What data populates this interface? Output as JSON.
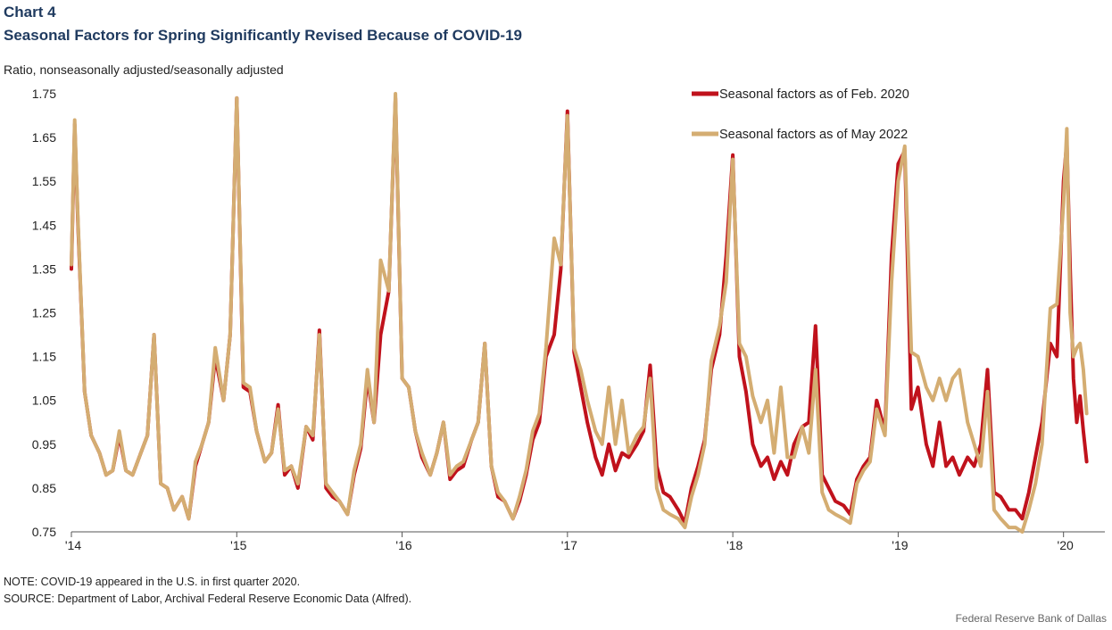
{
  "header": {
    "chart_number": "Chart 4",
    "title": "Seasonal Factors for Spring Significantly Revised Because of COVID-19"
  },
  "footer": {
    "note": "NOTE: COVID-19 appeared in the U.S. in first quarter 2020.",
    "source": "SOURCE: Department of Labor, Archival Federal Reserve Economic Data (Alfred).",
    "credit": "Federal  Reserve  Bank of Dallas"
  },
  "chart_data": {
    "type": "line",
    "title": "Seasonal Factors for Spring Significantly Revised Because of COVID-19",
    "xlabel": "",
    "ylabel": "Ratio, nonseasonally  adjusted/seasonally  adjusted",
    "ylim": [
      0.75,
      1.75
    ],
    "xlim": [
      2014.0,
      2020.25
    ],
    "yticks": [
      "1.75",
      "1.65",
      "1.55",
      "1.45",
      "1.35",
      "1.25",
      "1.15",
      "1.05",
      "0.95",
      "0.85",
      "0.75"
    ],
    "xticks": [
      {
        "value": 2014,
        "label": "'14"
      },
      {
        "value": 2015,
        "label": "'15"
      },
      {
        "value": 2016,
        "label": "'16"
      },
      {
        "value": 2017,
        "label": "'17"
      },
      {
        "value": 2018,
        "label": "'18"
      },
      {
        "value": 2019,
        "label": "'19"
      },
      {
        "value": 2020,
        "label": "'20"
      }
    ],
    "grid": false,
    "legend_position": "top-right",
    "series": [
      {
        "name": "Seasonal factors as of Feb. 2020",
        "color": "#c0121c",
        "x": [
          2014.0,
          2014.02,
          2014.04,
          2014.08,
          2014.12,
          2014.17,
          2014.21,
          2014.25,
          2014.29,
          2014.33,
          2014.37,
          2014.42,
          2014.46,
          2014.5,
          2014.54,
          2014.58,
          2014.62,
          2014.67,
          2014.71,
          2014.75,
          2014.79,
          2014.83,
          2014.87,
          2014.92,
          2014.96,
          2015.0,
          2015.04,
          2015.08,
          2015.12,
          2015.17,
          2015.21,
          2015.25,
          2015.29,
          2015.33,
          2015.37,
          2015.42,
          2015.46,
          2015.5,
          2015.54,
          2015.58,
          2015.62,
          2015.67,
          2015.71,
          2015.75,
          2015.79,
          2015.83,
          2015.87,
          2015.92,
          2015.96,
          2016.0,
          2016.04,
          2016.08,
          2016.12,
          2016.17,
          2016.21,
          2016.25,
          2016.29,
          2016.33,
          2016.37,
          2016.42,
          2016.46,
          2016.5,
          2016.54,
          2016.58,
          2016.62,
          2016.67,
          2016.71,
          2016.75,
          2016.79,
          2016.83,
          2016.87,
          2016.92,
          2016.96,
          2017.0,
          2017.04,
          2017.08,
          2017.12,
          2017.17,
          2017.21,
          2017.25,
          2017.29,
          2017.33,
          2017.37,
          2017.42,
          2017.46,
          2017.5,
          2017.54,
          2017.58,
          2017.62,
          2017.67,
          2017.71,
          2017.75,
          2017.79,
          2017.83,
          2017.87,
          2017.92,
          2017.96,
          2018.0,
          2018.04,
          2018.08,
          2018.12,
          2018.17,
          2018.21,
          2018.25,
          2018.29,
          2018.33,
          2018.37,
          2018.42,
          2018.46,
          2018.5,
          2018.54,
          2018.58,
          2018.62,
          2018.67,
          2018.71,
          2018.75,
          2018.79,
          2018.83,
          2018.87,
          2018.92,
          2018.96,
          2019.0,
          2019.04,
          2019.08,
          2019.12,
          2019.17,
          2019.21,
          2019.25,
          2019.29,
          2019.33,
          2019.37,
          2019.42,
          2019.46,
          2019.5,
          2019.54,
          2019.58,
          2019.62,
          2019.67,
          2019.71,
          2019.75,
          2019.79,
          2019.83,
          2019.87,
          2019.92,
          2019.96,
          2020.0,
          2020.02,
          2020.04,
          2020.06,
          2020.08,
          2020.1,
          2020.12,
          2020.14
        ],
        "values": [
          1.35,
          1.68,
          1.45,
          1.07,
          0.97,
          0.93,
          0.88,
          0.89,
          0.97,
          0.89,
          0.88,
          0.93,
          0.97,
          1.2,
          0.86,
          0.85,
          0.8,
          0.83,
          0.78,
          0.9,
          0.95,
          1.0,
          1.15,
          1.05,
          1.2,
          1.74,
          1.08,
          1.07,
          0.98,
          0.91,
          0.93,
          1.04,
          0.88,
          0.9,
          0.85,
          0.99,
          0.96,
          1.21,
          0.85,
          0.83,
          0.82,
          0.79,
          0.88,
          0.94,
          1.1,
          1.0,
          1.2,
          1.3,
          1.74,
          1.1,
          1.08,
          0.98,
          0.92,
          0.88,
          0.93,
          1.0,
          0.87,
          0.89,
          0.9,
          0.96,
          1.0,
          1.18,
          0.9,
          0.83,
          0.82,
          0.78,
          0.82,
          0.88,
          0.96,
          1.0,
          1.15,
          1.2,
          1.35,
          1.71,
          1.16,
          1.08,
          1.0,
          0.92,
          0.88,
          0.95,
          0.89,
          0.93,
          0.92,
          0.95,
          0.98,
          1.13,
          0.9,
          0.84,
          0.83,
          0.8,
          0.77,
          0.85,
          0.9,
          0.96,
          1.12,
          1.2,
          1.38,
          1.61,
          1.15,
          1.07,
          0.95,
          0.9,
          0.92,
          0.87,
          0.91,
          0.88,
          0.95,
          0.99,
          1.0,
          1.22,
          0.88,
          0.85,
          0.82,
          0.81,
          0.79,
          0.87,
          0.9,
          0.92,
          1.05,
          0.98,
          1.38,
          1.59,
          1.62,
          1.03,
          1.08,
          0.95,
          0.9,
          1.0,
          0.9,
          0.92,
          0.88,
          0.92,
          0.9,
          0.95,
          1.12,
          0.84,
          0.83,
          0.8,
          0.8,
          0.78,
          0.84,
          0.92,
          1.0,
          1.18,
          1.15,
          1.55,
          1.64,
          1.35,
          1.1,
          1.0,
          1.06,
          0.98,
          0.91
        ]
      },
      {
        "name": "Seasonal factors as of May 2022",
        "color": "#d4ad72",
        "x": [
          2014.0,
          2014.02,
          2014.04,
          2014.08,
          2014.12,
          2014.17,
          2014.21,
          2014.25,
          2014.29,
          2014.33,
          2014.37,
          2014.42,
          2014.46,
          2014.5,
          2014.54,
          2014.58,
          2014.62,
          2014.67,
          2014.71,
          2014.75,
          2014.79,
          2014.83,
          2014.87,
          2014.92,
          2014.96,
          2015.0,
          2015.04,
          2015.08,
          2015.12,
          2015.17,
          2015.21,
          2015.25,
          2015.29,
          2015.33,
          2015.37,
          2015.42,
          2015.46,
          2015.5,
          2015.54,
          2015.58,
          2015.62,
          2015.67,
          2015.71,
          2015.75,
          2015.79,
          2015.83,
          2015.87,
          2015.92,
          2015.96,
          2016.0,
          2016.04,
          2016.08,
          2016.12,
          2016.17,
          2016.21,
          2016.25,
          2016.29,
          2016.33,
          2016.37,
          2016.42,
          2016.46,
          2016.5,
          2016.54,
          2016.58,
          2016.62,
          2016.67,
          2016.71,
          2016.75,
          2016.79,
          2016.83,
          2016.87,
          2016.92,
          2016.96,
          2017.0,
          2017.04,
          2017.08,
          2017.12,
          2017.17,
          2017.21,
          2017.25,
          2017.29,
          2017.33,
          2017.37,
          2017.42,
          2017.46,
          2017.5,
          2017.54,
          2017.58,
          2017.62,
          2017.67,
          2017.71,
          2017.75,
          2017.79,
          2017.83,
          2017.87,
          2017.92,
          2017.96,
          2018.0,
          2018.04,
          2018.08,
          2018.12,
          2018.17,
          2018.21,
          2018.25,
          2018.29,
          2018.33,
          2018.37,
          2018.42,
          2018.46,
          2018.5,
          2018.54,
          2018.58,
          2018.62,
          2018.67,
          2018.71,
          2018.75,
          2018.79,
          2018.83,
          2018.87,
          2018.92,
          2018.96,
          2019.0,
          2019.04,
          2019.08,
          2019.12,
          2019.17,
          2019.21,
          2019.25,
          2019.29,
          2019.33,
          2019.37,
          2019.42,
          2019.46,
          2019.5,
          2019.54,
          2019.58,
          2019.62,
          2019.67,
          2019.71,
          2019.75,
          2019.79,
          2019.83,
          2019.87,
          2019.92,
          2019.96,
          2020.0,
          2020.02,
          2020.04,
          2020.06,
          2020.08,
          2020.1,
          2020.12,
          2020.14
        ],
        "values": [
          1.36,
          1.69,
          1.46,
          1.07,
          0.97,
          0.93,
          0.88,
          0.89,
          0.98,
          0.89,
          0.88,
          0.93,
          0.97,
          1.2,
          0.86,
          0.85,
          0.8,
          0.83,
          0.78,
          0.91,
          0.95,
          1.0,
          1.17,
          1.05,
          1.2,
          1.74,
          1.09,
          1.08,
          0.98,
          0.91,
          0.93,
          1.03,
          0.89,
          0.9,
          0.86,
          0.99,
          0.97,
          1.2,
          0.86,
          0.84,
          0.82,
          0.79,
          0.89,
          0.95,
          1.12,
          1.0,
          1.37,
          1.3,
          1.75,
          1.1,
          1.08,
          0.98,
          0.93,
          0.88,
          0.93,
          1.0,
          0.88,
          0.9,
          0.91,
          0.96,
          1.0,
          1.18,
          0.9,
          0.84,
          0.82,
          0.78,
          0.83,
          0.89,
          0.98,
          1.02,
          1.17,
          1.42,
          1.36,
          1.7,
          1.17,
          1.12,
          1.05,
          0.98,
          0.95,
          1.08,
          0.95,
          1.05,
          0.93,
          0.97,
          0.99,
          1.1,
          0.85,
          0.8,
          0.79,
          0.78,
          0.76,
          0.83,
          0.88,
          0.95,
          1.14,
          1.22,
          1.32,
          1.6,
          1.18,
          1.15,
          1.06,
          1.0,
          1.05,
          0.93,
          1.08,
          0.92,
          0.92,
          0.99,
          0.93,
          1.12,
          0.84,
          0.8,
          0.79,
          0.78,
          0.77,
          0.86,
          0.89,
          0.91,
          1.03,
          0.97,
          1.32,
          1.55,
          1.63,
          1.16,
          1.15,
          1.08,
          1.05,
          1.1,
          1.05,
          1.1,
          1.12,
          1.0,
          0.95,
          0.9,
          1.07,
          0.8,
          0.78,
          0.76,
          0.76,
          0.75,
          0.8,
          0.86,
          0.95,
          1.26,
          1.27,
          1.5,
          1.67,
          1.25,
          1.15,
          1.17,
          1.18,
          1.12,
          1.02
        ]
      }
    ]
  }
}
